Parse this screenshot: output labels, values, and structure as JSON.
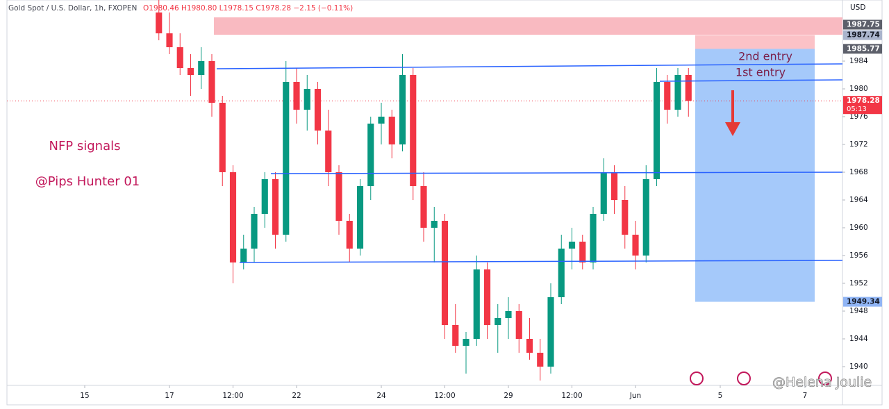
{
  "chart_data": {
    "type": "candlestick",
    "header": "Gold Spot / U.S. Dollar, 1h, FXOPEN",
    "ohlc_text": "O1980.46 H1980.80 L1978.15 C1978.28 −2.15 (−0.11%)",
    "currency": "USD",
    "annotations": [
      "NFP signals",
      "@Pips Hunter 01",
      "2nd entry",
      "1st entry"
    ],
    "watermark": "@Helena Joulie",
    "up_color": "#089981",
    "down_color": "#f23645",
    "x": [
      1.75,
      2,
      2.25,
      2.5,
      2.75,
      3,
      3.25,
      3.5,
      3.75,
      4,
      4.25,
      4.5,
      4.75,
      5,
      5.25,
      5.5,
      5.75,
      6,
      6.25,
      6.5,
      6.75,
      7,
      7.25,
      7.5,
      7.75,
      8,
      8.25,
      8.5,
      8.75,
      9,
      9.25,
      9.5,
      9.75,
      10,
      10.25,
      10.5,
      10.75,
      11,
      11.25,
      11.5,
      11.75,
      12,
      12.25,
      12.5,
      12.75,
      13,
      13.25,
      13.5,
      13.75,
      14,
      14.25
    ],
    "open": [
      1991,
      1988,
      1986,
      1983,
      1982,
      1984,
      1978,
      1968,
      1955,
      1957,
      1962,
      1967,
      1959,
      1981,
      1977,
      1980,
      1974,
      1968,
      1961,
      1957,
      1966,
      1975,
      1976,
      1972,
      1982,
      1966,
      1960,
      1961,
      1946,
      1943,
      1944,
      1954,
      1946,
      1947,
      1948,
      1944,
      1942,
      1940,
      1950,
      1957,
      1958,
      1955,
      1962,
      1968,
      1964,
      1959,
      1956,
      1967,
      1981,
      1977,
      1982
    ],
    "high": [
      1993,
      1991,
      1988,
      1985,
      1986,
      1985,
      1979,
      1969,
      1959,
      1963,
      1968,
      1968,
      1984,
      1983,
      1982,
      1981,
      1977,
      1969,
      1962,
      1967,
      1976,
      1978,
      1977,
      1985,
      1983,
      1968,
      1963,
      1962,
      1949,
      1945,
      1956,
      1955,
      1949,
      1950,
      1949,
      1947,
      1944,
      1952,
      1959,
      1960,
      1959,
      1963,
      1970,
      1969,
      1966,
      1961,
      1969,
      1983,
      1982,
      1983,
      1983
    ],
    "low": [
      1987,
      1985,
      1982,
      1979,
      1980,
      1976,
      1966,
      1952,
      1954,
      1955,
      1960,
      1957,
      1958,
      1975,
      1974,
      1972,
      1966,
      1959,
      1955,
      1956,
      1964,
      1972,
      1970,
      1971,
      1964,
      1958,
      1955,
      1944,
      1942,
      1939,
      1943,
      1944,
      1942,
      1944,
      1942,
      1941,
      1938,
      1939,
      1949,
      1954,
      1954,
      1954,
      1961,
      1962,
      1957,
      1954,
      1955,
      1966,
      1975,
      1976,
      1976
    ],
    "close": [
      1988,
      1986,
      1983,
      1982,
      1984,
      1978,
      1968,
      1955,
      1957,
      1962,
      1967,
      1959,
      1981,
      1977,
      1980,
      1974,
      1968,
      1961,
      1957,
      1966,
      1975,
      1976,
      1972,
      1982,
      1966,
      1960,
      1961,
      1946,
      1943,
      1944,
      1954,
      1946,
      1947,
      1948,
      1944,
      1942,
      1940,
      1950,
      1957,
      1958,
      1955,
      1962,
      1968,
      1964,
      1959,
      1956,
      1967,
      1981,
      1977,
      1982,
      1978.28
    ],
    "xlim": [
      -1.836,
      17.885
    ],
    "ylim": [
      1937.3,
      1992.8
    ],
    "xticks": [
      {
        "value": 0,
        "label": "15"
      },
      {
        "value": 2,
        "label": "17"
      },
      {
        "value": 3.5,
        "label": "12:00"
      },
      {
        "value": 5,
        "label": "22"
      },
      {
        "value": 7,
        "label": "24"
      },
      {
        "value": 8.5,
        "label": "12:00"
      },
      {
        "value": 10,
        "label": "29"
      },
      {
        "value": 11.5,
        "label": "12:00"
      },
      {
        "value": 13,
        "label": "Jun"
      },
      {
        "value": 15,
        "label": "5"
      },
      {
        "value": 17,
        "label": "7"
      }
    ],
    "yticks": [
      1940,
      1944,
      1948,
      1952,
      1956,
      1960,
      1964,
      1968,
      1972,
      1976,
      1980,
      1984
    ],
    "price_labels": [
      {
        "value": 1987.74,
        "bg": "#aab4cc",
        "fg": "#131722"
      },
      {
        "value": 1987.75,
        "bg": "#5d606b",
        "fg": "#ffffff"
      },
      {
        "value": 1985.77,
        "bg": "#5d606b",
        "fg": "#ffffff"
      },
      {
        "value": 1978.28,
        "bg": "#f23645",
        "fg": "#ffffff",
        "countdown": "05:13"
      },
      {
        "value": 1949.34,
        "bg": "#90b5f5",
        "fg": "#131722"
      }
    ]
  }
}
